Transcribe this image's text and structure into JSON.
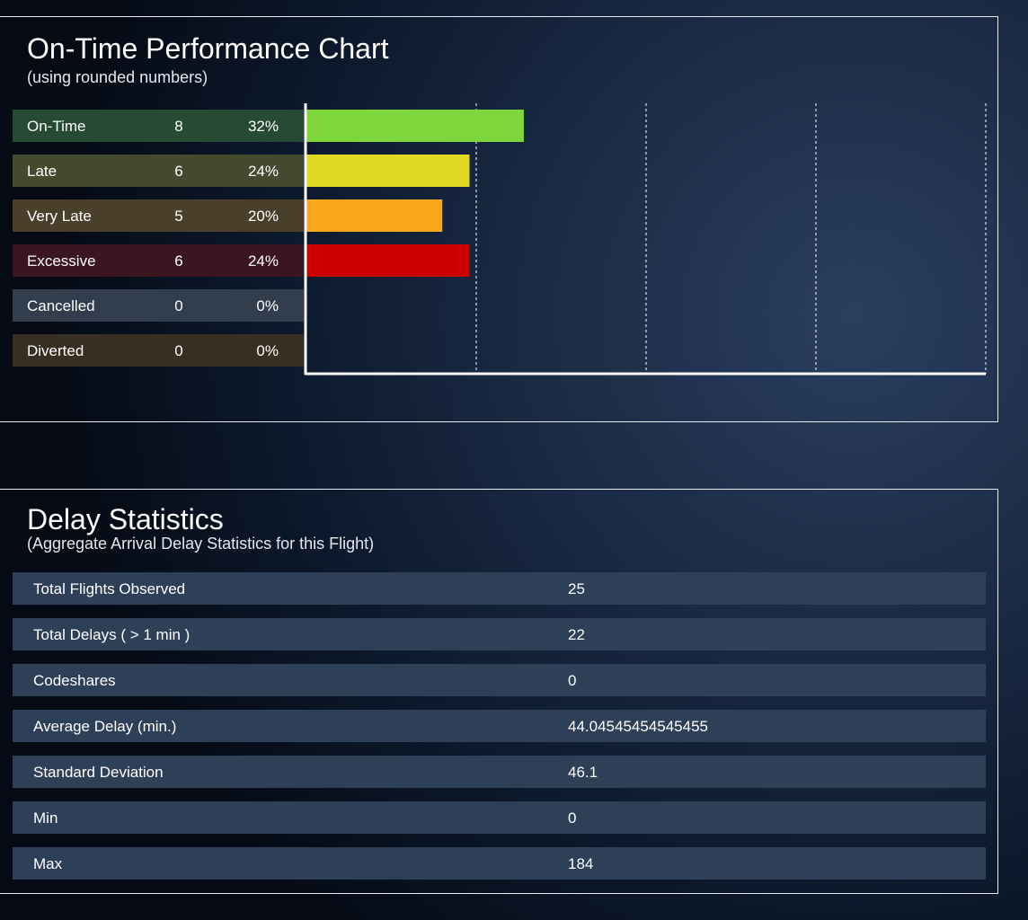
{
  "chart_data": {
    "type": "bar",
    "orientation": "horizontal",
    "title": "On-Time Performance Chart",
    "subtitle": "(using rounded numbers)",
    "categories": [
      "On-Time",
      "Late",
      "Very Late",
      "Excessive",
      "Cancelled",
      "Diverted"
    ],
    "counts": [
      8,
      6,
      5,
      6,
      0,
      0
    ],
    "percent_labels": [
      "32%",
      "24%",
      "20%",
      "24%",
      "0%",
      "0%"
    ],
    "values": [
      32,
      24,
      20,
      24,
      0,
      0
    ],
    "xlim": [
      0,
      100
    ],
    "gridlines": [
      25,
      50,
      75,
      100
    ],
    "grid": true,
    "bar_colors": [
      "#7ed63c",
      "#e2d922",
      "#f9a81b",
      "#cc0000",
      "#333f4f",
      "#3a3222"
    ],
    "row_colors": [
      "#264a33",
      "#434a2e",
      "#4a3f2b",
      "#3b1520",
      "#323e4d",
      "#382e21"
    ]
  },
  "stats": {
    "title": "Delay Statistics",
    "subtitle": "(Aggregate Arrival Delay Statistics for this Flight)",
    "rows": [
      {
        "label": "Total Flights Observed",
        "value": "25"
      },
      {
        "label": "Total Delays ( > 1 min )",
        "value": "22"
      },
      {
        "label": "Codeshares",
        "value": "0"
      },
      {
        "label": "Average Delay (min.)",
        "value": "44.04545454545455"
      },
      {
        "label": "Standard Deviation",
        "value": "46.1"
      },
      {
        "label": "Min",
        "value": "0"
      },
      {
        "label": "Max",
        "value": "184"
      }
    ]
  }
}
